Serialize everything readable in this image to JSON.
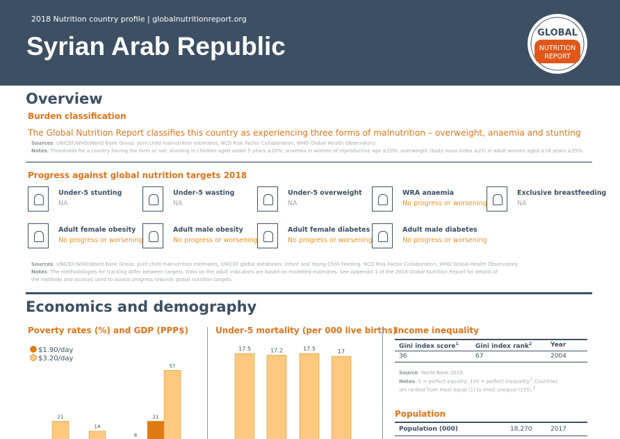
{
  "header": {
    "kicker": "2018 Nutrition country profile  |  globalnutritionreport.org",
    "title": "Syrian Arab Republic",
    "logo_top": "GLOBAL",
    "logo_bottom_1": "NUTRITION",
    "logo_bottom_2": "REPORT"
  },
  "overview": {
    "heading": "Overview",
    "burden": {
      "title": "Burden classification",
      "statement": "The Global Nutrition Report classifies this country as experiencing three forms of malnutrition – overweight, anaemia and stunting",
      "sources_label": "Sources",
      "sources": ": UNICEF/WHO/World Bank Group: Joint child malnutrition estimates, NCD Risk Factor Collaboration, WHO Global Health Observatory.",
      "notes_label": "Notes",
      "notes": ": Thresholds for a country having the form or not: stunting in children aged under 5 years ≥20%; anaemia in women of reproductive age ≥20%; overweight (body mass index ≥25) in adult women aged ≥18 years ≥35%."
    },
    "progress": {
      "title": "Progress against global nutrition targets 2018",
      "targets": [
        {
          "label": "Under-5 stunting",
          "status": "NA",
          "color": "#a7a9ac"
        },
        {
          "label": "Under-5 wasting",
          "status": "NA",
          "color": "#a7a9ac"
        },
        {
          "label": "Under-5 overweight",
          "status": "NA",
          "color": "#a7a9ac"
        },
        {
          "label": "WRA anaemia",
          "status": "No progress or worsening",
          "color": "#f0901e"
        },
        {
          "label": "Exclusive breastfeeding",
          "status": "NA",
          "color": "#a7a9ac"
        },
        {
          "label": "Adult female obesity",
          "status": "No progress or worsening",
          "color": "#f0901e"
        },
        {
          "label": "Adult male obesity",
          "status": "No progress or worsening",
          "color": "#f0901e"
        },
        {
          "label": "Adult female diabetes",
          "status": "No progress or worsening",
          "color": "#f0901e"
        },
        {
          "label": "Adult male diabetes",
          "status": "No progress or worsening",
          "color": "#f0901e"
        }
      ],
      "sources_label": "Sources",
      "sources": ": UNICEF/WHO/World Bank Group: Joint child malnutrition estimates, UNICEF global databases: Infant and Young Child Feeding, NCD Risk Factor Collaboration, WHO Global Health Observatory.",
      "notes_label": "Notes",
      "notes_1": ": The methodologies for tracking differ between targets. Data on the adult indicators are based on modelled estimates. See Appendix 1 of the ",
      "notes_italic": "2018 Global Nutrition Report",
      "notes_2": " for details of",
      "notes_3": "the methods and sources used to assess progress towards global nutrition targets."
    }
  },
  "economics": {
    "heading": "Economics and demography",
    "poverty": {
      "type": "bar",
      "title": "Poverty rates (%) and GDP (PPP$)",
      "categories": [
        null,
        null,
        null,
        null
      ],
      "series": [
        {
          "name": "$1.90/day",
          "color": "#e07a12",
          "values": [
            null,
            null,
            8,
            21
          ]
        },
        {
          "name": "$3.20/day",
          "color": "#fcc97e",
          "values": [
            21,
            14,
            null,
            57
          ]
        }
      ]
    },
    "mortality": {
      "type": "bar",
      "title": "Under-5 mortality (per 000 live births)",
      "categories": [
        null,
        null,
        null,
        null
      ],
      "values": [
        17.5,
        17.2,
        17.5,
        17
      ],
      "color": "#fcc97e"
    },
    "income": {
      "title": "Income inequality",
      "headers": [
        "Gini index score",
        "Gini index rank",
        "Year"
      ],
      "header_notes": [
        "1",
        "2",
        null
      ],
      "row": [
        36,
        67,
        2004
      ],
      "source_label": "Source",
      "source": ": World Bank 2018.",
      "notes_label": "Notes",
      "notes_1": ": 0 = perfect equality, 100 = perfect inequality.",
      "notes_sup1": "1",
      "notes_2": " Countries",
      "notes_3": "are ranked from most equal (1) to most unequal (155).",
      "notes_sup2": "2"
    },
    "population": {
      "title": "Population",
      "label": "Population (000)",
      "value": "18,270",
      "year": 2017
    }
  }
}
